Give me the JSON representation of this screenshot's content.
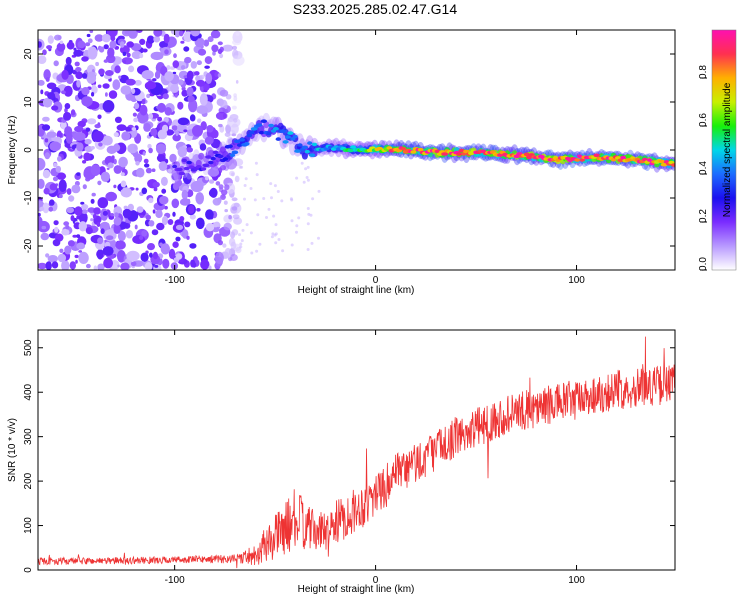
{
  "title": "S233.2025.285.02.47.G14",
  "colors": {
    "snr_line": "#ee3333",
    "axes": "#000000",
    "colormap": [
      "#ffffff",
      "#b899ff",
      "#7a2cff",
      "#1b10f0",
      "#1c6cff",
      "#00d7e8",
      "#18f00a",
      "#c8f000",
      "#ffb000",
      "#ff3050",
      "#ff10b0"
    ]
  },
  "chart_data": [
    {
      "type": "heatmap",
      "title": "",
      "xlabel": "Height of straight line (km)",
      "ylabel": "Frequency (Hz)",
      "xlim": [
        -168,
        149
      ],
      "ylim": [
        -25,
        25
      ],
      "xticks": [
        -100,
        0,
        100
      ],
      "yticks": [
        -20,
        -10,
        0,
        10,
        20
      ],
      "colorbar": {
        "label": "Normalized spectral amplitude",
        "range": [
          0,
          1
        ],
        "ticks": [
          "0.0",
          "0.2",
          "0.4",
          "0.6",
          "0.8"
        ]
      },
      "noise_region": {
        "x": [
          -168,
          -68
        ],
        "y": [
          -25,
          25
        ]
      },
      "ridge": [
        {
          "x": -100,
          "freq": -4,
          "amp": 0.25
        },
        {
          "x": -80,
          "freq": -2,
          "amp": 0.3
        },
        {
          "x": -65,
          "freq": 2,
          "amp": 0.45
        },
        {
          "x": -55,
          "freq": 5,
          "amp": 0.35
        },
        {
          "x": -45,
          "freq": 3,
          "amp": 0.5
        },
        {
          "x": -35,
          "freq": 0,
          "amp": 0.45
        },
        {
          "x": -20,
          "freq": 0.5,
          "amp": 0.5
        },
        {
          "x": -5,
          "freq": 0,
          "amp": 0.65
        },
        {
          "x": 10,
          "freq": 0.2,
          "amp": 0.9
        },
        {
          "x": 30,
          "freq": -0.5,
          "amp": 1.0
        },
        {
          "x": 50,
          "freq": -0.5,
          "amp": 0.95
        },
        {
          "x": 70,
          "freq": -1,
          "amp": 0.95
        },
        {
          "x": 90,
          "freq": -2,
          "amp": 1.0
        },
        {
          "x": 110,
          "freq": -1.5,
          "amp": 0.95
        },
        {
          "x": 130,
          "freq": -2,
          "amp": 1.0
        },
        {
          "x": 149,
          "freq": -3,
          "amp": 0.85
        }
      ]
    },
    {
      "type": "line",
      "title": "",
      "xlabel": "Height of straight line (km)",
      "ylabel": "SNR (10 * v/v)",
      "xlim": [
        -168,
        149
      ],
      "ylim": [
        0,
        540
      ],
      "xticks": [
        -100,
        0,
        100
      ],
      "yticks": [
        0,
        100,
        200,
        300,
        400,
        500
      ],
      "series": [
        {
          "name": "SNR",
          "x": [
            -168,
            -150,
            -130,
            -110,
            -90,
            -70,
            -60,
            -55,
            -50,
            -45,
            -40,
            -35,
            -30,
            -25,
            -20,
            -15,
            -10,
            -5,
            0,
            5,
            10,
            20,
            30,
            40,
            50,
            60,
            70,
            80,
            90,
            100,
            110,
            120,
            130,
            140,
            149
          ],
          "values": [
            20,
            20,
            21,
            22,
            24,
            25,
            35,
            55,
            75,
            95,
            115,
            100,
            85,
            90,
            105,
            120,
            135,
            150,
            170,
            190,
            210,
            240,
            270,
            300,
            320,
            340,
            355,
            365,
            375,
            385,
            395,
            405,
            410,
            415,
            420
          ],
          "noise_amplitude": [
            8,
            8,
            8,
            8,
            8,
            10,
            25,
            40,
            50,
            60,
            70,
            55,
            45,
            45,
            50,
            50,
            50,
            50,
            50,
            50,
            50,
            50,
            45,
            45,
            45,
            45,
            45,
            45,
            45,
            45,
            45,
            45,
            45,
            45,
            45
          ]
        }
      ]
    }
  ]
}
